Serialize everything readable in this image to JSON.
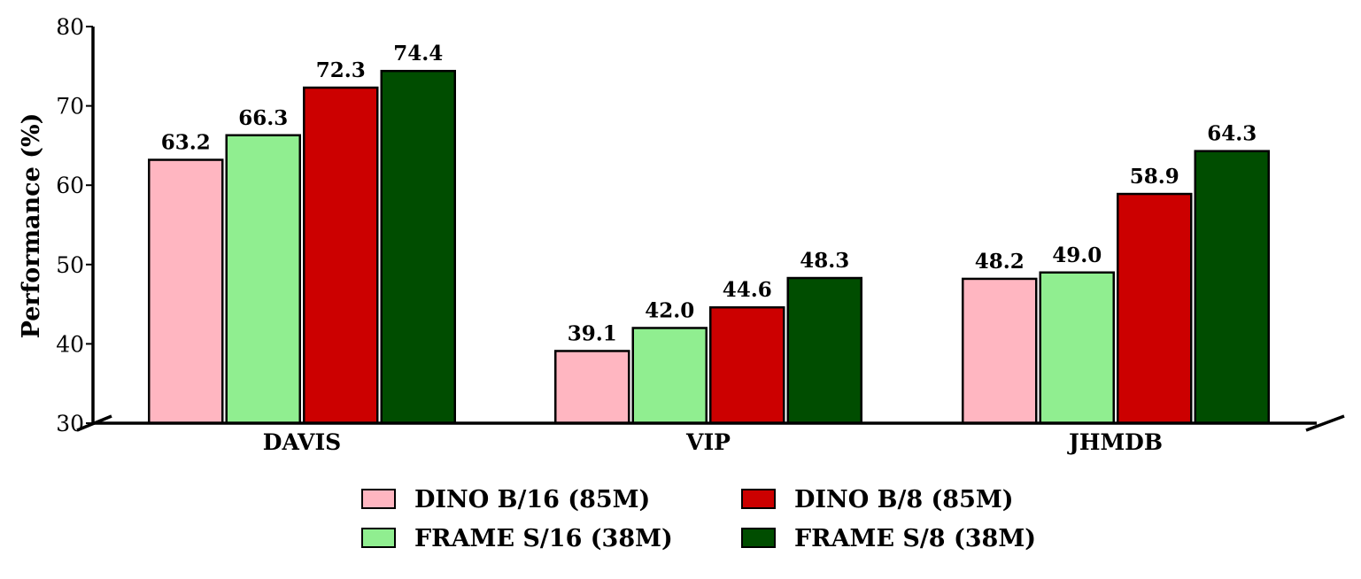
{
  "chart_data": {
    "type": "bar",
    "categories": [
      "DAVIS",
      "VIP",
      "JHMDB"
    ],
    "series": [
      {
        "name": "DINO B/16 (85M)",
        "color": "#ffb6c1",
        "values": [
          63.2,
          39.1,
          48.2
        ]
      },
      {
        "name": "FRAME S/16 (38M)",
        "color": "#90ee90",
        "values": [
          66.3,
          42.0,
          49.0
        ]
      },
      {
        "name": "DINO B/8 (85M)",
        "color": "#cc0000",
        "values": [
          72.3,
          44.6,
          58.9
        ]
      },
      {
        "name": "FRAME S/8 (38M)",
        "color": "#004d00",
        "values": [
          74.4,
          48.3,
          64.3
        ]
      }
    ],
    "value_labels": [
      [
        "63.2",
        "39.1",
        "48.2"
      ],
      [
        "66.3",
        "42.0",
        "49.0"
      ],
      [
        "72.3",
        "44.6",
        "58.9"
      ],
      [
        "74.4",
        "48.3",
        "64.3"
      ]
    ],
    "title": "",
    "xlabel": "",
    "ylabel": "Performance (%)",
    "ylim": [
      30,
      80
    ],
    "yticks": [
      "30",
      "40",
      "50",
      "60",
      "70",
      "80"
    ],
    "grid": false,
    "legend_position": "bottom",
    "legend_columns": 2,
    "broken_axis": true
  }
}
